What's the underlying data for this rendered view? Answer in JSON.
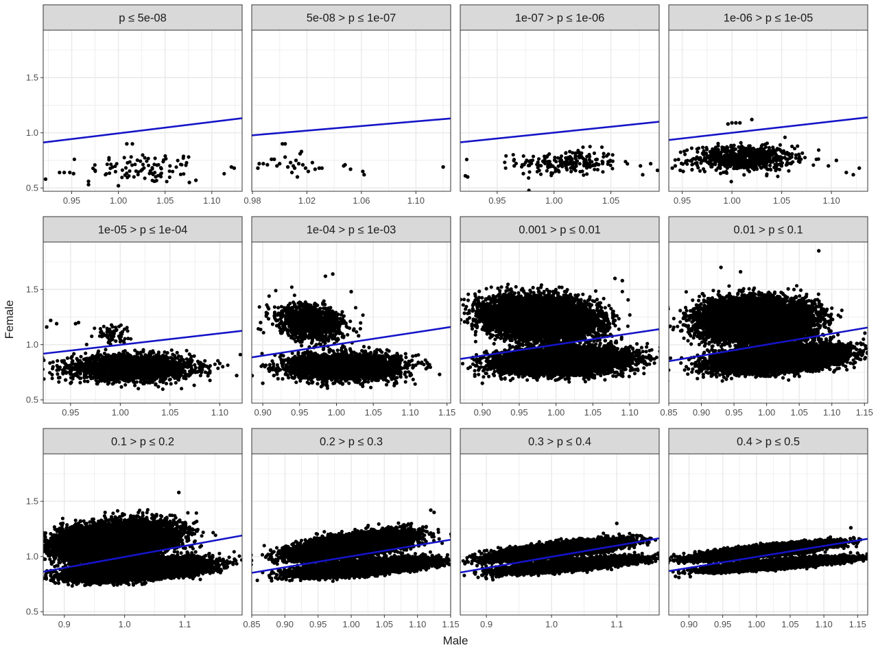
{
  "chart_data": {
    "type": "scatter",
    "xlabel": "Male",
    "ylabel": "Female",
    "ylim": [
      0.47,
      1.93
    ],
    "y_ticks": [
      0.5,
      1.0,
      1.5
    ],
    "y_tick_labels": [
      "0.5",
      "1.0",
      "1.5"
    ],
    "grid": true,
    "legend": "none",
    "colors": {
      "points": "#000000",
      "line": "#1414c8",
      "strip": "#d9d9d9",
      "grid": "#ebebeb",
      "border": "#333333"
    },
    "panels": [
      {
        "title": "p ≤ 5e-08",
        "xlim": [
          0.9195,
          1.1325
        ],
        "x_ticks": [
          0.95,
          1.0,
          1.05,
          1.1
        ],
        "x_tick_labels": [
          "0.95",
          "1.00",
          "1.05",
          "1.10"
        ],
        "line": [
          [
            0.9195,
            0.912
          ],
          [
            1.1325,
            1.132
          ]
        ],
        "clusters": [
          {
            "cx": 1.03,
            "cy": 0.68,
            "sx": 0.03,
            "sy": 0.07,
            "n": 90,
            "r": 0
          }
        ],
        "points": [
          [
            0.922,
            0.58
          ],
          [
            0.937,
            0.64
          ],
          [
            0.942,
            0.64
          ],
          [
            0.948,
            0.64
          ],
          [
            0.952,
            0.63
          ],
          [
            0.968,
            0.56
          ],
          [
            0.968,
            0.53
          ],
          [
            0.975,
            0.66
          ],
          [
            1.0,
            0.52
          ],
          [
            1.009,
            0.9
          ],
          [
            1.015,
            0.9
          ],
          [
            1.076,
            0.55
          ],
          [
            1.083,
            0.57
          ],
          [
            1.121,
            0.69
          ],
          [
            1.124,
            0.68
          ]
        ]
      },
      {
        "title": "5e-08 > p ≤ 1e-07",
        "xlim": [
          0.9795,
          1.1255
        ],
        "x_ticks": [
          0.98,
          1.02,
          1.06,
          1.1
        ],
        "x_tick_labels": [
          "0.98",
          "1.02",
          "1.06",
          "1.10"
        ],
        "line": [
          [
            0.9795,
            0.977
          ],
          [
            1.1255,
            1.13
          ]
        ],
        "clusters": [],
        "points": [
          [
            0.984,
            0.68
          ],
          [
            0.985,
            0.72
          ],
          [
            0.988,
            0.72
          ],
          [
            0.991,
            0.71
          ],
          [
            0.994,
            0.76
          ],
          [
            0.996,
            0.76
          ],
          [
            0.998,
            0.7
          ],
          [
            1.0,
            0.72
          ],
          [
            1.002,
            0.9
          ],
          [
            1.004,
            0.9
          ],
          [
            1.004,
            0.78
          ],
          [
            1.006,
            0.69
          ],
          [
            1.008,
            0.73
          ],
          [
            1.009,
            0.64
          ],
          [
            1.01,
            0.7
          ],
          [
            1.011,
            0.68
          ],
          [
            1.012,
            0.75
          ],
          [
            1.013,
            0.6
          ],
          [
            1.014,
            0.72
          ],
          [
            1.015,
            0.81
          ],
          [
            1.016,
            0.83
          ],
          [
            1.017,
            0.71
          ],
          [
            1.019,
            0.68
          ],
          [
            1.021,
            0.65
          ],
          [
            1.024,
            0.73
          ],
          [
            1.026,
            0.67
          ],
          [
            1.029,
            0.68
          ],
          [
            1.031,
            0.68
          ],
          [
            1.047,
            0.7
          ],
          [
            1.048,
            0.71
          ],
          [
            1.052,
            0.67
          ],
          [
            1.061,
            0.65
          ],
          [
            1.062,
            0.62
          ],
          [
            1.12,
            0.69
          ]
        ]
      },
      {
        "title": "1e-07 > p ≤ 1e-06",
        "xlim": [
          0.9175,
          1.0925
        ],
        "x_ticks": [
          0.95,
          1.0,
          1.05
        ],
        "x_tick_labels": [
          "0.95",
          "1.00",
          "1.05"
        ],
        "line": [
          [
            0.9175,
            0.914
          ],
          [
            1.0925,
            1.1
          ]
        ],
        "clusters": [
          {
            "cx": 1.012,
            "cy": 0.73,
            "sx": 0.022,
            "sy": 0.06,
            "n": 200,
            "r": 0
          }
        ],
        "points": [
          [
            0.922,
            0.61
          ],
          [
            0.924,
            0.6
          ],
          [
            0.965,
            0.7
          ],
          [
            0.973,
            0.63
          ],
          [
            1.076,
            0.7
          ],
          [
            1.078,
            0.62
          ],
          [
            1.085,
            0.72
          ],
          [
            1.091,
            0.66
          ]
        ]
      },
      {
        "title": "1e-06 > p ≤ 1e-05",
        "xlim": [
          0.9365,
          1.1365
        ],
        "x_ticks": [
          0.95,
          1.0,
          1.05,
          1.1
        ],
        "x_tick_labels": [
          "0.95",
          "1.00",
          "1.05",
          "1.10"
        ],
        "line": [
          [
            0.9365,
            0.935
          ],
          [
            1.1365,
            1.14
          ]
        ],
        "clusters": [
          {
            "cx": 1.012,
            "cy": 0.77,
            "sx": 0.025,
            "sy": 0.055,
            "n": 700,
            "r": 0
          }
        ],
        "points": [
          [
            0.94,
            0.68
          ],
          [
            0.943,
            0.7
          ],
          [
            0.948,
            0.66
          ],
          [
            0.951,
            0.65
          ],
          [
            0.996,
            1.08
          ],
          [
            1.0,
            1.09
          ],
          [
            1.004,
            1.09
          ],
          [
            1.008,
            1.09
          ],
          [
            1.02,
            1.12
          ],
          [
            1.097,
            0.7
          ],
          [
            1.105,
            0.75
          ],
          [
            1.115,
            0.64
          ],
          [
            1.122,
            0.62
          ],
          [
            1.128,
            0.68
          ]
        ]
      },
      {
        "title": "1e-05 > p ≤ 1e-04",
        "xlim": [
          0.9225,
          1.1225
        ],
        "x_ticks": [
          0.95,
          1.0,
          1.05,
          1.1
        ],
        "x_tick_labels": [
          "0.95",
          "1.00",
          "1.05",
          "1.10"
        ],
        "line": [
          [
            0.9225,
            0.918
          ],
          [
            1.1225,
            1.125
          ]
        ],
        "clusters": [
          {
            "cx": 1.012,
            "cy": 0.79,
            "sx": 0.03,
            "sy": 0.055,
            "n": 2400,
            "r": 0
          },
          {
            "cx": 0.99,
            "cy": 1.1,
            "sx": 0.01,
            "sy": 0.04,
            "n": 70,
            "r": 0
          }
        ],
        "points": [
          [
            0.926,
            1.16
          ],
          [
            0.93,
            1.22
          ],
          [
            0.936,
            1.19
          ],
          [
            0.938,
            0.7
          ],
          [
            0.945,
            0.68
          ],
          [
            0.95,
            0.65
          ],
          [
            0.955,
            1.19
          ],
          [
            0.958,
            1.2
          ],
          [
            1.09,
            0.75
          ],
          [
            1.1,
            0.83
          ],
          [
            1.117,
            0.72
          ]
        ]
      },
      {
        "title": "1e-04 > p ≤ 1e-03",
        "xlim": [
          0.885,
          1.155
        ],
        "x_ticks": [
          0.9,
          0.95,
          1.0,
          1.05,
          1.1,
          1.15
        ],
        "x_tick_labels": [
          "0.90",
          "0.95",
          "1.00",
          "1.05",
          "1.10",
          "1.15"
        ],
        "line": [
          [
            0.885,
            0.885
          ],
          [
            1.155,
            1.16
          ]
        ],
        "clusters": [
          {
            "cx": 1.012,
            "cy": 0.8,
            "sx": 0.035,
            "sy": 0.055,
            "n": 3800,
            "r": 0
          },
          {
            "cx": 0.965,
            "cy": 1.2,
            "sx": 0.022,
            "sy": 0.08,
            "n": 1200,
            "r": -0.25
          }
        ],
        "points": [
          [
            0.897,
            1.2
          ],
          [
            0.9,
            0.65
          ],
          [
            0.915,
            0.72
          ],
          [
            0.985,
            1.62
          ],
          [
            0.995,
            1.64
          ],
          [
            1.02,
            1.48
          ],
          [
            1.03,
            1.08
          ],
          [
            1.1,
            0.72
          ],
          [
            1.14,
            0.73
          ]
        ]
      },
      {
        "title": "0.001 > p ≤ 0.01",
        "xlim": [
          0.87,
          1.14
        ],
        "x_ticks": [
          0.9,
          0.95,
          1.0,
          1.05,
          1.1
        ],
        "x_tick_labels": [
          "0.90",
          "0.95",
          "1.00",
          "1.05",
          "1.10"
        ],
        "line": [
          [
            0.87,
            0.87
          ],
          [
            1.14,
            1.14
          ]
        ],
        "clusters": [
          {
            "cx": 0.98,
            "cy": 1.24,
            "sx": 0.035,
            "sy": 0.09,
            "n": 8000,
            "r": -0.15
          },
          {
            "cx": 1.01,
            "cy": 0.85,
            "sx": 0.04,
            "sy": 0.055,
            "n": 8000,
            "r": 0.15
          }
        ],
        "points": [
          [
            0.88,
            1.2
          ],
          [
            0.9,
            0.65
          ],
          [
            1.08,
            1.6
          ],
          [
            1.09,
            1.58
          ],
          [
            1.12,
            0.85
          ]
        ]
      },
      {
        "title": "0.01 > p ≤ 0.1",
        "xlim": [
          0.85,
          1.155
        ],
        "x_ticks": [
          0.85,
          0.9,
          0.95,
          1.0,
          1.05,
          1.1,
          1.15
        ],
        "x_tick_labels": [
          "0.85",
          "0.90",
          "0.95",
          "1.00",
          "1.05",
          "1.10",
          "1.15"
        ],
        "line": [
          [
            0.85,
            0.85
          ],
          [
            1.155,
            1.155
          ]
        ],
        "clusters": [
          {
            "cx": 0.985,
            "cy": 1.22,
            "sx": 0.04,
            "sy": 0.09,
            "n": 9000,
            "r": 0
          },
          {
            "cx": 1.02,
            "cy": 0.87,
            "sx": 0.045,
            "sy": 0.055,
            "n": 9000,
            "r": 0.35
          }
        ],
        "points": [
          [
            0.87,
            1.13
          ],
          [
            0.88,
            0.78
          ],
          [
            0.93,
            1.7
          ],
          [
            0.96,
            1.66
          ],
          [
            1.08,
            1.85
          ],
          [
            1.14,
            0.88
          ]
        ]
      },
      {
        "title": "0.1 > p ≤ 0.2",
        "xlim": [
          0.865,
          1.195
        ],
        "x_ticks": [
          0.9,
          1.0,
          1.1
        ],
        "x_tick_labels": [
          "0.9",
          "1.0",
          "1.1"
        ],
        "line": [
          [
            0.865,
            0.862
          ],
          [
            1.195,
            1.19
          ]
        ],
        "clusters": [
          {
            "cx": 0.985,
            "cy": 1.14,
            "sx": 0.045,
            "sy": 0.08,
            "n": 10000,
            "r": 0.3
          },
          {
            "cx": 1.02,
            "cy": 0.88,
            "sx": 0.05,
            "sy": 0.045,
            "n": 10000,
            "r": 0.45
          }
        ],
        "points": [
          [
            0.88,
            0.95
          ],
          [
            0.885,
            0.76
          ],
          [
            1.09,
            1.58
          ],
          [
            1.17,
            0.96
          ],
          [
            1.18,
            0.93
          ]
        ]
      },
      {
        "title": "0.2 > p ≤ 0.3",
        "xlim": [
          0.85,
          1.15
        ],
        "x_ticks": [
          0.85,
          0.9,
          0.95,
          1.0,
          1.05,
          1.1,
          1.15
        ],
        "x_tick_labels": [
          "0.85",
          "0.90",
          "0.95",
          "1.00",
          "1.05",
          "1.10",
          "1.15"
        ],
        "line": [
          [
            0.85,
            0.852
          ],
          [
            1.15,
            1.152
          ]
        ],
        "clusters": [
          {
            "cx": 1.0,
            "cy": 1.1,
            "sx": 0.04,
            "sy": 0.055,
            "n": 10000,
            "r": 0.6
          },
          {
            "cx": 1.02,
            "cy": 0.9,
            "sx": 0.045,
            "sy": 0.035,
            "n": 10000,
            "r": 0.65
          }
        ],
        "points": [
          [
            0.88,
            0.78
          ],
          [
            1.12,
            1.42
          ],
          [
            1.125,
            1.4
          ],
          [
            1.14,
            0.97
          ]
        ]
      },
      {
        "title": "0.3 > p ≤ 0.4",
        "xlim": [
          0.86,
          1.165
        ],
        "x_ticks": [
          0.9,
          1.0,
          1.1
        ],
        "x_tick_labels": [
          "0.9",
          "1.0",
          "1.1"
        ],
        "line": [
          [
            0.86,
            0.855
          ],
          [
            1.165,
            1.165
          ]
        ],
        "clusters": [
          {
            "cx": 1.01,
            "cy": 1.06,
            "sx": 0.045,
            "sy": 0.04,
            "n": 9000,
            "r": 0.75
          },
          {
            "cx": 1.025,
            "cy": 0.92,
            "sx": 0.045,
            "sy": 0.03,
            "n": 9000,
            "r": 0.75
          }
        ],
        "points": [
          [
            0.872,
            0.95
          ],
          [
            0.9,
            0.8
          ],
          [
            0.91,
            0.79
          ],
          [
            1.1,
            1.3
          ],
          [
            1.15,
            0.99
          ]
        ]
      },
      {
        "title": "0.4 > p ≤ 0.5",
        "xlim": [
          0.87,
          1.165
        ],
        "x_ticks": [
          0.9,
          0.95,
          1.0,
          1.05,
          1.1,
          1.15
        ],
        "x_tick_labels": [
          "0.90",
          "0.95",
          "1.00",
          "1.05",
          "1.10",
          "1.15"
        ],
        "line": [
          [
            0.87,
            0.868
          ],
          [
            1.165,
            1.16
          ]
        ],
        "clusters": [
          {
            "cx": 1.01,
            "cy": 1.05,
            "sx": 0.045,
            "sy": 0.035,
            "n": 9000,
            "r": 0.8
          },
          {
            "cx": 1.03,
            "cy": 0.93,
            "sx": 0.045,
            "sy": 0.027,
            "n": 9000,
            "r": 0.8
          }
        ],
        "points": [
          [
            0.88,
            0.82
          ],
          [
            0.885,
            0.81
          ],
          [
            1.14,
            1.26
          ],
          [
            1.15,
            1.03
          ]
        ]
      }
    ]
  }
}
